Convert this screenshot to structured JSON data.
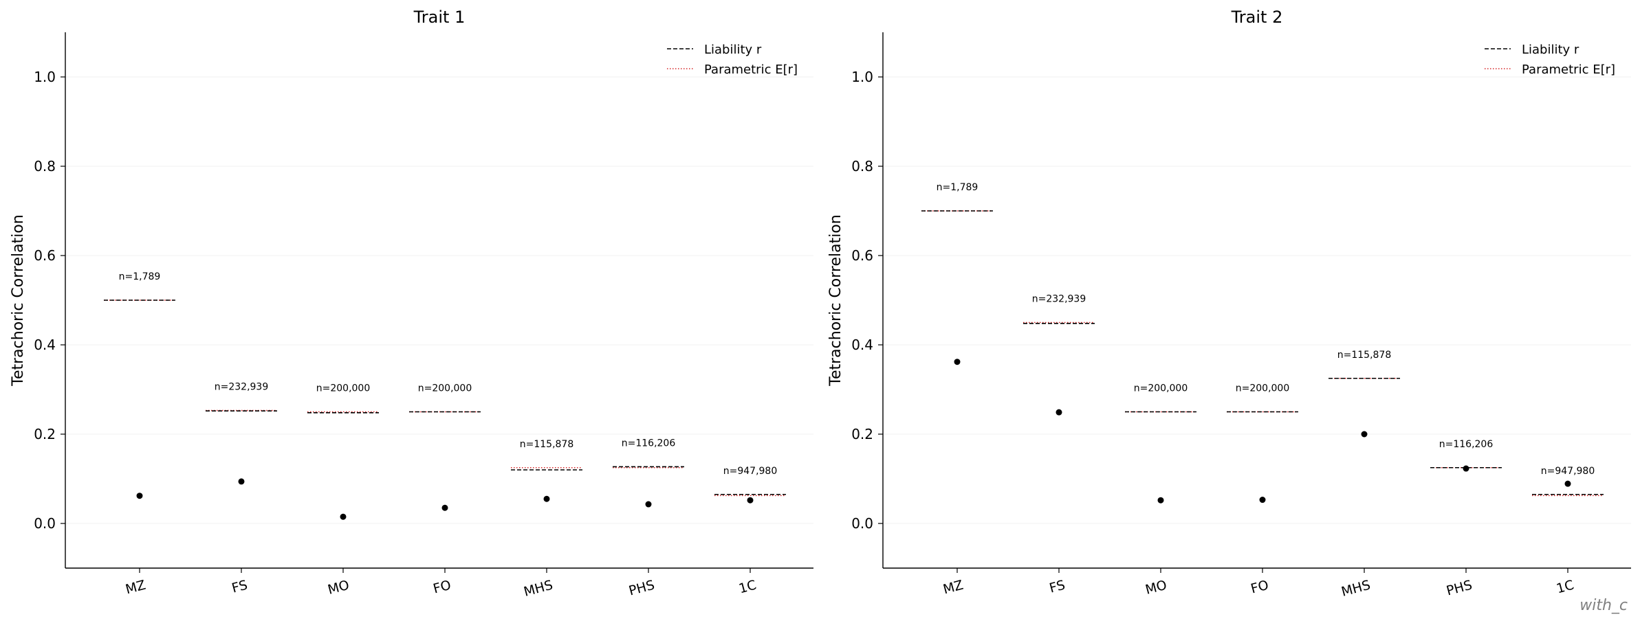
{
  "watermark": "with_c",
  "chart_data": [
    {
      "type": "scatter",
      "title": "Trait 1",
      "ylabel": "Tetrachoric Correlation",
      "xlabel": "",
      "ylim": [
        -0.1,
        1.1
      ],
      "yticks": [
        "0.0",
        "0.2",
        "0.4",
        "0.6",
        "0.8",
        "1.0"
      ],
      "grid": "horizontal",
      "legend_position": "top-right",
      "legend": [
        "Liability r",
        "Parametric E[r]"
      ],
      "categories": [
        "MZ",
        "FS",
        "MO",
        "FO",
        "MHS",
        "PHS",
        "1C"
      ],
      "sample_labels": [
        "n=1,789",
        "n=232,939",
        "n=200,000",
        "n=200,000",
        "n=115,878",
        "n=116,206",
        "n=947,980"
      ],
      "points": [
        0.062,
        0.094,
        0.015,
        0.035,
        0.055,
        0.043,
        0.052
      ],
      "liability_r": [
        0.5,
        0.252,
        0.248,
        0.25,
        0.12,
        0.127,
        0.065
      ],
      "parametric_er": [
        0.5,
        0.253,
        0.25,
        0.25,
        0.125,
        0.125,
        0.0625
      ]
    },
    {
      "type": "scatter",
      "title": "Trait 2",
      "ylabel": "Tetrachoric Correlation",
      "xlabel": "",
      "ylim": [
        -0.1,
        1.1
      ],
      "yticks": [
        "0.0",
        "0.2",
        "0.4",
        "0.6",
        "0.8",
        "1.0"
      ],
      "grid": "horizontal",
      "legend_position": "top-right",
      "legend": [
        "Liability r",
        "Parametric E[r]"
      ],
      "categories": [
        "MZ",
        "FS",
        "MO",
        "FO",
        "MHS",
        "PHS",
        "1C"
      ],
      "sample_labels": [
        "n=1,789",
        "n=232,939",
        "n=200,000",
        "n=200,000",
        "n=115,878",
        "n=116,206",
        "n=947,980"
      ],
      "points": [
        0.362,
        0.249,
        0.052,
        0.053,
        0.2,
        0.123,
        0.089
      ],
      "liability_r": [
        0.7,
        0.448,
        0.25,
        0.25,
        0.325,
        0.125,
        0.065
      ],
      "parametric_er": [
        0.7,
        0.45,
        0.25,
        0.25,
        0.325,
        0.125,
        0.0625
      ]
    }
  ]
}
